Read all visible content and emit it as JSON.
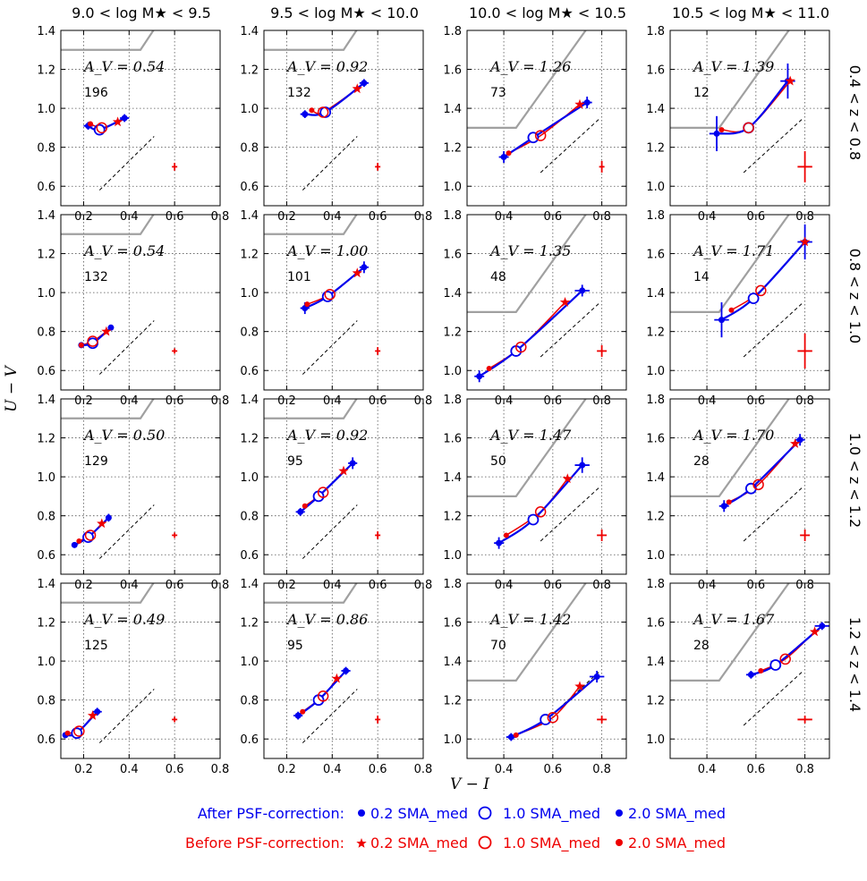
{
  "figure": {
    "column_titles": [
      "9.0 < log M★ < 9.5",
      "9.5 < log M★ < 10.0",
      "10.0 < log M★ < 10.5",
      "10.5 < log M★ < 11.0"
    ],
    "row_titles": [
      "0.4 < z < 0.8",
      "0.8 < z < 1.0",
      "1.0 < z < 1.2",
      "1.2 < z < 1.4"
    ],
    "ylabel": "U − V",
    "xlabel": "V − I",
    "legend": {
      "after_label": "After PSF-correction:",
      "before_label": "Before PSF-correction:",
      "after_items": [
        "0.2 SMA_med",
        "1.0 SMA_med",
        "2.0 SMA_med"
      ],
      "before_items": [
        "0.2 SMA_med",
        "1.0 SMA_med",
        "2.0 SMA_med"
      ],
      "after_color": "#0000ee",
      "before_color": "#ee0000"
    }
  },
  "chart_data": [
    {
      "type": "line",
      "row": 0,
      "col": 0,
      "av": "A_V = 0.54",
      "count": "196",
      "xlim": [
        0.1,
        0.8
      ],
      "ylim": [
        0.5,
        1.4
      ],
      "xticks": [
        0.2,
        0.4,
        0.6,
        0.8
      ],
      "yticks": [
        0.6,
        0.8,
        1.0,
        1.2,
        1.4
      ],
      "after": {
        "x": [
          0.22,
          0.27,
          0.38
        ],
        "y": [
          0.91,
          0.89,
          0.95
        ],
        "xerr": [
          0.02,
          0.02,
          0.02
        ],
        "yerr": [
          0.02,
          0.02,
          0.02
        ]
      },
      "before": {
        "x": [
          0.35,
          0.28,
          0.23
        ],
        "y": [
          0.93,
          0.9,
          0.92
        ]
      },
      "sample_err": {
        "x": 0.6,
        "y": 0.7,
        "xerr": 0.01,
        "yerr": 0.02
      }
    },
    {
      "type": "line",
      "row": 0,
      "col": 1,
      "av": "A_V = 0.92",
      "count": "132",
      "xlim": [
        0.1,
        0.8
      ],
      "ylim": [
        0.5,
        1.4
      ],
      "xticks": [
        0.2,
        0.4,
        0.6,
        0.8
      ],
      "yticks": [
        0.6,
        0.8,
        1.0,
        1.2,
        1.4
      ],
      "after": {
        "x": [
          0.28,
          0.37,
          0.54
        ],
        "y": [
          0.97,
          0.98,
          1.13
        ],
        "xerr": [
          0.02,
          0.02,
          0.02
        ],
        "yerr": [
          0.02,
          0.02,
          0.02
        ]
      },
      "before": {
        "x": [
          0.51,
          0.36,
          0.31
        ],
        "y": [
          1.1,
          0.98,
          0.99
        ]
      },
      "sample_err": {
        "x": 0.6,
        "y": 0.7,
        "xerr": 0.01,
        "yerr": 0.02
      }
    },
    {
      "type": "line",
      "row": 0,
      "col": 2,
      "av": "A_V = 1.26",
      "count": "73",
      "xlim": [
        0.25,
        0.9
      ],
      "ylim": [
        0.9,
        1.8
      ],
      "xticks": [
        0.4,
        0.6,
        0.8
      ],
      "yticks": [
        1.0,
        1.2,
        1.4,
        1.6,
        1.8
      ],
      "after": {
        "x": [
          0.4,
          0.52,
          0.74
        ],
        "y": [
          1.15,
          1.25,
          1.43
        ],
        "xerr": [
          0.02,
          0.02,
          0.02
        ],
        "yerr": [
          0.03,
          0.02,
          0.03
        ]
      },
      "before": {
        "x": [
          0.71,
          0.55,
          0.42
        ],
        "y": [
          1.42,
          1.26,
          1.17
        ]
      },
      "sample_err": {
        "x": 0.8,
        "y": 1.1,
        "xerr": 0.01,
        "yerr": 0.03
      }
    },
    {
      "type": "line",
      "row": 0,
      "col": 3,
      "av": "A_V = 1.39",
      "count": "12",
      "xlim": [
        0.25,
        0.9
      ],
      "ylim": [
        0.9,
        1.8
      ],
      "xticks": [
        0.4,
        0.6,
        0.8
      ],
      "yticks": [
        1.0,
        1.2,
        1.4,
        1.6,
        1.8
      ],
      "after": {
        "x": [
          0.44,
          0.57,
          0.73
        ],
        "y": [
          1.27,
          1.3,
          1.54
        ],
        "xerr": [
          0.03,
          0.02,
          0.03
        ],
        "yerr": [
          0.09,
          0.02,
          0.09
        ]
      },
      "before": {
        "x": [
          0.74,
          0.57,
          0.46
        ],
        "y": [
          1.54,
          1.3,
          1.29
        ]
      },
      "sample_err": {
        "x": 0.8,
        "y": 1.1,
        "xerr": 0.03,
        "yerr": 0.08
      }
    },
    {
      "type": "line",
      "row": 1,
      "col": 0,
      "av": "A_V = 0.54",
      "count": "132",
      "xlim": [
        0.1,
        0.8
      ],
      "ylim": [
        0.5,
        1.4
      ],
      "xticks": [
        0.2,
        0.4,
        0.6,
        0.8
      ],
      "yticks": [
        0.6,
        0.8,
        1.0,
        1.2,
        1.4
      ],
      "after": {
        "x": [
          0.19,
          0.24,
          0.32
        ],
        "y": [
          0.73,
          0.74,
          0.82
        ],
        "xerr": [
          0.01,
          0.01,
          0.01
        ],
        "yerr": [
          0.01,
          0.01,
          0.01
        ]
      },
      "before": {
        "x": [
          0.3,
          0.24,
          0.19
        ],
        "y": [
          0.8,
          0.75,
          0.73
        ]
      },
      "sample_err": {
        "x": 0.6,
        "y": 0.7,
        "xerr": 0.01,
        "yerr": 0.01
      }
    },
    {
      "type": "line",
      "row": 1,
      "col": 1,
      "av": "A_V = 1.00",
      "count": "101",
      "xlim": [
        0.1,
        0.8
      ],
      "ylim": [
        0.5,
        1.4
      ],
      "xticks": [
        0.2,
        0.4,
        0.6,
        0.8
      ],
      "yticks": [
        0.6,
        0.8,
        1.0,
        1.2,
        1.4
      ],
      "after": {
        "x": [
          0.28,
          0.38,
          0.54
        ],
        "y": [
          0.92,
          0.98,
          1.13
        ],
        "xerr": [
          0.02,
          0.02,
          0.02
        ],
        "yerr": [
          0.03,
          0.02,
          0.03
        ]
      },
      "before": {
        "x": [
          0.51,
          0.39,
          0.29
        ],
        "y": [
          1.1,
          0.99,
          0.94
        ]
      },
      "sample_err": {
        "x": 0.6,
        "y": 0.7,
        "xerr": 0.01,
        "yerr": 0.02
      }
    },
    {
      "type": "line",
      "row": 1,
      "col": 2,
      "av": "A_V = 1.35",
      "count": "48",
      "xlim": [
        0.25,
        0.9
      ],
      "ylim": [
        0.9,
        1.8
      ],
      "xticks": [
        0.4,
        0.6,
        0.8
      ],
      "yticks": [
        1.0,
        1.2,
        1.4,
        1.6,
        1.8
      ],
      "after": {
        "x": [
          0.3,
          0.45,
          0.72
        ],
        "y": [
          0.97,
          1.1,
          1.41
        ],
        "xerr": [
          0.02,
          0.02,
          0.03
        ],
        "yerr": [
          0.03,
          0.02,
          0.03
        ]
      },
      "before": {
        "x": [
          0.65,
          0.47,
          0.34
        ],
        "y": [
          1.35,
          1.12,
          1.01
        ]
      },
      "sample_err": {
        "x": 0.8,
        "y": 1.1,
        "xerr": 0.02,
        "yerr": 0.03
      }
    },
    {
      "type": "line",
      "row": 1,
      "col": 3,
      "av": "A_V = 1.71",
      "count": "14",
      "xlim": [
        0.25,
        0.9
      ],
      "ylim": [
        0.9,
        1.8
      ],
      "xticks": [
        0.4,
        0.6,
        0.8
      ],
      "yticks": [
        1.0,
        1.2,
        1.4,
        1.6,
        1.8
      ],
      "after": {
        "x": [
          0.46,
          0.59,
          0.8
        ],
        "y": [
          1.26,
          1.37,
          1.66
        ],
        "xerr": [
          0.03,
          0.02,
          0.03
        ],
        "yerr": [
          0.09,
          0.02,
          0.09
        ]
      },
      "before": {
        "x": [
          0.8,
          0.62,
          0.5
        ],
        "y": [
          1.66,
          1.41,
          1.31
        ]
      },
      "sample_err": {
        "x": 0.8,
        "y": 1.1,
        "xerr": 0.03,
        "yerr": 0.09
      }
    },
    {
      "type": "line",
      "row": 2,
      "col": 0,
      "av": "A_V = 0.50",
      "count": "129",
      "xlim": [
        0.1,
        0.8
      ],
      "ylim": [
        0.5,
        1.4
      ],
      "xticks": [
        0.2,
        0.4,
        0.6,
        0.8
      ],
      "yticks": [
        0.6,
        0.8,
        1.0,
        1.2,
        1.4
      ],
      "after": {
        "x": [
          0.16,
          0.22,
          0.31
        ],
        "y": [
          0.65,
          0.69,
          0.79
        ],
        "xerr": [
          0.01,
          0.01,
          0.01
        ],
        "yerr": [
          0.01,
          0.01,
          0.02
        ]
      },
      "before": {
        "x": [
          0.28,
          0.23,
          0.18
        ],
        "y": [
          0.76,
          0.7,
          0.67
        ]
      },
      "sample_err": {
        "x": 0.6,
        "y": 0.7,
        "xerr": 0.01,
        "yerr": 0.01
      }
    },
    {
      "type": "line",
      "row": 2,
      "col": 1,
      "av": "A_V = 0.92",
      "count": "95",
      "xlim": [
        0.1,
        0.8
      ],
      "ylim": [
        0.5,
        1.4
      ],
      "xticks": [
        0.2,
        0.4,
        0.6,
        0.8
      ],
      "yticks": [
        0.6,
        0.8,
        1.0,
        1.2,
        1.4
      ],
      "after": {
        "x": [
          0.26,
          0.34,
          0.49
        ],
        "y": [
          0.82,
          0.9,
          1.07
        ],
        "xerr": [
          0.02,
          0.02,
          0.02
        ],
        "yerr": [
          0.02,
          0.02,
          0.03
        ]
      },
      "before": {
        "x": [
          0.45,
          0.36,
          0.28
        ],
        "y": [
          1.03,
          0.92,
          0.85
        ]
      },
      "sample_err": {
        "x": 0.6,
        "y": 0.7,
        "xerr": 0.01,
        "yerr": 0.02
      }
    },
    {
      "type": "line",
      "row": 2,
      "col": 2,
      "av": "A_V = 1.47",
      "count": "50",
      "xlim": [
        0.25,
        0.9
      ],
      "ylim": [
        0.9,
        1.8
      ],
      "xticks": [
        0.4,
        0.6,
        0.8
      ],
      "yticks": [
        1.0,
        1.2,
        1.4,
        1.6,
        1.8
      ],
      "after": {
        "x": [
          0.38,
          0.52,
          0.72
        ],
        "y": [
          1.06,
          1.18,
          1.46
        ],
        "xerr": [
          0.02,
          0.02,
          0.03
        ],
        "yerr": [
          0.03,
          0.02,
          0.04
        ]
      },
      "before": {
        "x": [
          0.66,
          0.55,
          0.41
        ],
        "y": [
          1.39,
          1.22,
          1.1
        ]
      },
      "sample_err": {
        "x": 0.8,
        "y": 1.1,
        "xerr": 0.02,
        "yerr": 0.03
      }
    },
    {
      "type": "line",
      "row": 2,
      "col": 3,
      "av": "A_V = 1.70",
      "count": "28",
      "xlim": [
        0.25,
        0.9
      ],
      "ylim": [
        0.9,
        1.8
      ],
      "xticks": [
        0.4,
        0.6,
        0.8
      ],
      "yticks": [
        1.0,
        1.2,
        1.4,
        1.6,
        1.8
      ],
      "after": {
        "x": [
          0.47,
          0.58,
          0.78
        ],
        "y": [
          1.25,
          1.34,
          1.59
        ],
        "xerr": [
          0.02,
          0.02,
          0.02
        ],
        "yerr": [
          0.03,
          0.02,
          0.03
        ]
      },
      "before": {
        "x": [
          0.76,
          0.61,
          0.49
        ],
        "y": [
          1.57,
          1.36,
          1.27
        ]
      },
      "sample_err": {
        "x": 0.8,
        "y": 1.1,
        "xerr": 0.02,
        "yerr": 0.03
      }
    },
    {
      "type": "line",
      "row": 3,
      "col": 0,
      "av": "A_V = 0.49",
      "count": "125",
      "xlim": [
        0.1,
        0.8
      ],
      "ylim": [
        0.5,
        1.4
      ],
      "xticks": [
        0.2,
        0.4,
        0.6,
        0.8
      ],
      "yticks": [
        0.6,
        0.8,
        1.0,
        1.2,
        1.4
      ],
      "after": {
        "x": [
          0.12,
          0.17,
          0.26
        ],
        "y": [
          0.62,
          0.63,
          0.74
        ],
        "xerr": [
          0.01,
          0.01,
          0.02
        ],
        "yerr": [
          0.01,
          0.01,
          0.02
        ]
      },
      "before": {
        "x": [
          0.24,
          0.18,
          0.13
        ],
        "y": [
          0.72,
          0.64,
          0.63
        ]
      },
      "sample_err": {
        "x": 0.6,
        "y": 0.7,
        "xerr": 0.01,
        "yerr": 0.01
      }
    },
    {
      "type": "line",
      "row": 3,
      "col": 1,
      "av": "A_V = 0.86",
      "count": "95",
      "xlim": [
        0.1,
        0.8
      ],
      "ylim": [
        0.5,
        1.4
      ],
      "xticks": [
        0.2,
        0.4,
        0.6,
        0.8
      ],
      "yticks": [
        0.6,
        0.8,
        1.0,
        1.2,
        1.4
      ],
      "after": {
        "x": [
          0.25,
          0.34,
          0.46
        ],
        "y": [
          0.72,
          0.8,
          0.95
        ],
        "xerr": [
          0.02,
          0.02,
          0.02
        ],
        "yerr": [
          0.02,
          0.02,
          0.02
        ]
      },
      "before": {
        "x": [
          0.42,
          0.36,
          0.27
        ],
        "y": [
          0.91,
          0.82,
          0.74
        ]
      },
      "sample_err": {
        "x": 0.6,
        "y": 0.7,
        "xerr": 0.01,
        "yerr": 0.02
      }
    },
    {
      "type": "line",
      "row": 3,
      "col": 2,
      "av": "A_V = 1.42",
      "count": "70",
      "xlim": [
        0.25,
        0.9
      ],
      "ylim": [
        0.9,
        1.8
      ],
      "xticks": [
        0.4,
        0.6,
        0.8
      ],
      "yticks": [
        1.0,
        1.2,
        1.4,
        1.6,
        1.8
      ],
      "after": {
        "x": [
          0.43,
          0.57,
          0.78
        ],
        "y": [
          1.01,
          1.1,
          1.32
        ],
        "xerr": [
          0.02,
          0.02,
          0.03
        ],
        "yerr": [
          0.02,
          0.02,
          0.03
        ]
      },
      "before": {
        "x": [
          0.71,
          0.6,
          0.45
        ],
        "y": [
          1.27,
          1.11,
          1.02
        ]
      },
      "sample_err": {
        "x": 0.8,
        "y": 1.1,
        "xerr": 0.02,
        "yerr": 0.02
      }
    },
    {
      "type": "line",
      "row": 3,
      "col": 3,
      "av": "A_V = 1.67",
      "count": "28",
      "xlim": [
        0.25,
        0.9
      ],
      "ylim": [
        0.9,
        1.8
      ],
      "xticks": [
        0.4,
        0.6,
        0.8
      ],
      "yticks": [
        1.0,
        1.2,
        1.4,
        1.6,
        1.8
      ],
      "after": {
        "x": [
          0.58,
          0.68,
          0.87
        ],
        "y": [
          1.33,
          1.38,
          1.58
        ],
        "xerr": [
          0.02,
          0.02,
          0.03
        ],
        "yerr": [
          0.02,
          0.02,
          0.02
        ]
      },
      "before": {
        "x": [
          0.84,
          0.72,
          0.62
        ],
        "y": [
          1.55,
          1.41,
          1.35
        ]
      },
      "sample_err": {
        "x": 0.8,
        "y": 1.1,
        "xerr": 0.03,
        "yerr": 0.02
      }
    }
  ]
}
